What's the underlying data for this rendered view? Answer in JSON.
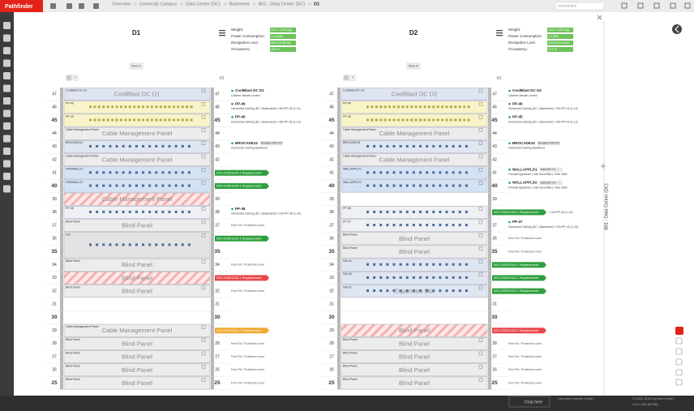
{
  "header": {
    "app": "Pathfinder",
    "breadcrumb": [
      "Overview",
      "University Campus",
      "Data Center (DC)",
      "Basement",
      "B01 - Data Center (DC)",
      "D1"
    ],
    "search": "everywhere"
  },
  "side_title": "B01 - Data Center (DC)",
  "footer": {
    "drop": "Drop here",
    "license": "Licensed: Inpunkt GmbH",
    "copyright": "© 2001–2025 Inpunkt GmbH",
    "version": "v14.0.260 (64 Bit)"
  },
  "racks": [
    {
      "title": "D1",
      "row": "Row D",
      "pager": [
        "1",
        "2"
      ],
      "stats": [
        {
          "label": "Weight:",
          "value": "113.4 / 1000 (kg)"
        },
        {
          "label": "Power Consumption:",
          "value": "1.18 (kW)"
        },
        {
          "label": "Dissipation Loss:",
          "value": "893.5 (0.38 kW)"
        },
        {
          "label": "Occupancy:",
          "value": "18.0 %"
        }
      ],
      "units": [
        {
          "number": 47,
          "device": {
            "tag": "CoolBlast DC D1",
            "label": "CoolBlast DC D1",
            "kind": "cool"
          },
          "note": {
            "title": "CoolBlast DC D1",
            "sub": "Cabinet climate control"
          }
        },
        {
          "number": 46,
          "device": {
            "tag": "PP-46",
            "kind": "patch"
          },
          "note": {
            "title": "PP-46",
            "sub": "Horizontal Cabling (DC | Basement) » B4>PP-05 (1-12)"
          }
        },
        {
          "number": 45,
          "device": {
            "tag": "PP-45",
            "kind": "patch"
          },
          "note": {
            "title": "PP-45",
            "sub": "Horizontal Cabling (DC | Basement) » B5>PP-05 (1-12)"
          }
        },
        {
          "number": 44,
          "device": {
            "tag": "Cable Management Panel",
            "label": "Cable Management Panel",
            "kind": "blind"
          }
        },
        {
          "number": 43,
          "device": {
            "tag": "BROCADE14",
            "kind": "switch"
          },
          "note": {
            "title": "BROCADE14",
            "badge": "Brocade FGS ICX",
            "sub": "Horizontal Cabling Backbone"
          }
        },
        {
          "number": 42,
          "device": {
            "tag": "Cable Management Panel",
            "label": "Cable Management Panel",
            "kind": "blind"
          }
        },
        {
          "number": 41,
          "device": {
            "tag": "FIREWALL01",
            "kind": "firewall"
          },
          "note": {
            "wo": "WO-2025/1024-1 Replacement",
            "wo_color": "#2e9e3e"
          }
        },
        {
          "number": 40,
          "device": {
            "tag": "FIREWALL02",
            "kind": "firewall"
          },
          "note": {
            "wo": "WO-2025/1024-1 Replacement",
            "wo_color": "#2e9e3e"
          }
        },
        {
          "number": 39,
          "device": {
            "label": "Cable Management Panel",
            "kind": "hatched"
          }
        },
        {
          "number": 38,
          "device": {
            "tag": "PP-38",
            "kind": "patch2"
          },
          "note": {
            "title": "PP-38",
            "sub": "Horizontal Cabling (DC | Basement) » D3>PP-38 (1-24)"
          }
        },
        {
          "number": 37,
          "device": {
            "tag": "Blind Panel",
            "label": "Blind Panel",
            "kind": "blind"
          },
          "note": {
            "free": "Free RU / Protective cover"
          }
        },
        {
          "number": 36,
          "device": {
            "tag": "Full",
            "kind": "server"
          },
          "note": {
            "wo": "WO-2025/1024-1 Replacement",
            "wo_color": "#2e9e3e"
          }
        },
        {
          "number": 35
        },
        {
          "number": 34,
          "device": {
            "tag": "Blind Panel",
            "label": "Blind Panel",
            "kind": "blind"
          },
          "note": {
            "free": "Free RU / Protective cover"
          }
        },
        {
          "number": 33,
          "device": {
            "label": "Blind Panel",
            "kind": "hatched"
          },
          "note": {
            "wo": "WO-2025/1024-1 Replacement",
            "wo_color": "#e8474b"
          }
        },
        {
          "number": 32,
          "device": {
            "tag": "Blind Panel",
            "label": "Blind Panel",
            "kind": "blind"
          },
          "note": {
            "free": "Free RU / Protective cover"
          }
        },
        {
          "number": 31
        },
        {
          "number": 30
        },
        {
          "number": 29,
          "device": {
            "tag": "Cable Management Panel",
            "label": "Cable Management Panel",
            "kind": "blind"
          },
          "note": {
            "wo": "WO-2025/1024-1 Replacement",
            "wo_color": "#f0a830"
          }
        },
        {
          "number": 28,
          "device": {
            "tag": "Blind Panel",
            "label": "Blind Panel",
            "kind": "blind"
          },
          "note": {
            "free": "Free RU / Protective cover"
          }
        },
        {
          "number": 27,
          "device": {
            "tag": "Blind Panel",
            "label": "Blind Panel",
            "kind": "blind"
          },
          "note": {
            "free": "Free RU / Protective cover"
          }
        },
        {
          "number": 26,
          "device": {
            "tag": "Blind Panel",
            "label": "Blind Panel",
            "kind": "blind"
          },
          "note": {
            "free": "Free RU / Protective cover"
          }
        },
        {
          "number": 25,
          "device": {
            "tag": "Blind Panel",
            "label": "Blind Panel",
            "kind": "blind"
          },
          "note": {
            "free": "Free RU / Protective cover"
          }
        }
      ]
    },
    {
      "title": "D2",
      "row": "Row D",
      "pager": [
        "1",
        "2"
      ],
      "stats": [
        {
          "label": "Weight:",
          "value": "143.8 / 1000 (kg)"
        },
        {
          "label": "Power Consumption:",
          "value": "0.2 (kW)"
        },
        {
          "label": "Dissipation Loss:",
          "value": "1194.5 (0.49 kW)"
        },
        {
          "label": "Occupancy:",
          "value": "24.6 %"
        }
      ],
      "units": [
        {
          "number": 47,
          "device": {
            "tag": "CoolBlast DC D2",
            "label": "CoolBlast DC D2",
            "kind": "cool"
          },
          "note": {
            "title": "CoolBlast DC D2",
            "sub": "Cabinet climate control"
          }
        },
        {
          "number": 46,
          "device": {
            "tag": "PP-46",
            "kind": "patch"
          },
          "note": {
            "title": "PP-46",
            "sub": "Horizontal Cabling (DC | Basement) » B4>PP-04 (1-12)"
          }
        },
        {
          "number": 45,
          "device": {
            "tag": "PP-45",
            "kind": "patch"
          },
          "note": {
            "title": "PP-45",
            "sub": "Horizontal Cabling (DC | Basement) » B5>PP-04 (1-12)"
          }
        },
        {
          "number": 44,
          "device": {
            "tag": "Cable Management Panel",
            "label": "Cable Management Panel",
            "kind": "blind"
          }
        },
        {
          "number": 43,
          "device": {
            "tag": "BROCADE15",
            "kind": "switch"
          },
          "note": {
            "title": "BROCADE15",
            "badge": "Brocade FGS ICX",
            "sub": "Horizontal Cabling Backbone"
          }
        },
        {
          "number": 42,
          "device": {
            "tag": "Cable Management Panel",
            "label": "Cable Management Panel",
            "kind": "blind"
          }
        },
        {
          "number": 41,
          "device": {
            "tag": "WALLAPPLD1",
            "kind": "firewall"
          },
          "note": {
            "title": "WALLAPPLD1",
            "badge": "SonicOS 7.0",
            "sub": "Firewall Appliance | Dell SonicWALL NSa 2650"
          }
        },
        {
          "number": 40,
          "device": {
            "tag": "WALLAPPLD2",
            "kind": "firewall"
          },
          "note": {
            "title": "WALLAPPLD2",
            "badge": "SonicOS 7.0",
            "sub": "Firewall Appliance | Dell SonicWALL NSa 2650"
          }
        },
        {
          "number": 39
        },
        {
          "number": 38,
          "device": {
            "tag": "PP-38",
            "kind": "patch2"
          },
          "note": {
            "wo": "WO-2025/1024-1 Replacement",
            "wo_color": "#2e9e3e",
            "sub": "» D3>PP-38 (1-24)"
          }
        },
        {
          "number": 37,
          "device": {
            "tag": "PP-37",
            "kind": "patch2"
          },
          "note": {
            "title": "PP-37",
            "sub": "Horizontal Cabling (DC | Basement) » D3>PP-42 (1-24)"
          }
        },
        {
          "number": 36,
          "device": {
            "tag": "Blind Panel",
            "label": "Blind Panel",
            "kind": "blind"
          },
          "note": {
            "free": "Free RU / Protective cover"
          }
        },
        {
          "number": 35,
          "device": {
            "tag": "Blind Panel",
            "label": "Blind Panel",
            "kind": "blind"
          },
          "note": {
            "free": "Free RU / Protective cover"
          }
        },
        {
          "number": 34,
          "device": {
            "tag": "SW-34",
            "kind": "switch"
          },
          "note": {
            "wo": "WO-2025/1024-1 Replacement",
            "wo_color": "#2e9e3e"
          }
        },
        {
          "number": 33,
          "device": {
            "tag": "SW-33",
            "kind": "switch"
          },
          "note": {
            "wo": "WO-2025/1024-1 Replacement",
            "wo_color": "#2e9e3e"
          }
        },
        {
          "number": 32,
          "device": {
            "tag": "SW-32",
            "label": "Expansion Slot",
            "kind": "switch"
          },
          "note": {
            "wo": "WO-2025/1024-1 Replacement",
            "wo_color": "#2e9e3e"
          }
        },
        {
          "number": 31
        },
        {
          "number": 30
        },
        {
          "number": 29,
          "device": {
            "label": "Blind Panel",
            "kind": "hatched"
          },
          "note": {
            "wo": "WO-2025/1024-1 Replacement",
            "wo_color": "#e8474b"
          }
        },
        {
          "number": 28,
          "device": {
            "tag": "Blind Panel",
            "label": "Blind Panel",
            "kind": "blind"
          },
          "note": {
            "free": "Free RU / Protective cover"
          }
        },
        {
          "number": 27,
          "device": {
            "tag": "Blind Panel",
            "label": "Blind Panel",
            "kind": "blind"
          },
          "note": {
            "free": "Free RU / Protective cover"
          }
        },
        {
          "number": 26,
          "device": {
            "tag": "Blind Panel",
            "label": "Blind Panel",
            "kind": "blind"
          },
          "note": {
            "free": "Free RU / Protective cover"
          }
        },
        {
          "number": 25,
          "device": {
            "tag": "Blind Panel",
            "label": "Blind Panel",
            "kind": "blind"
          },
          "note": {
            "free": "Free RU / Protective cover"
          }
        }
      ]
    }
  ]
}
